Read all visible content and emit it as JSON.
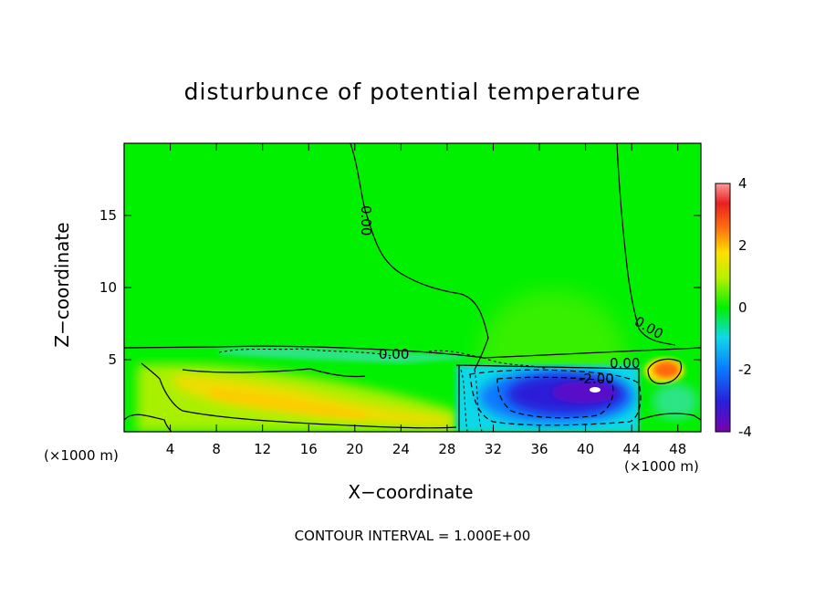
{
  "chart_data": {
    "type": "heatmap",
    "title": "disturbunce of potential temperature",
    "xlabel": "X−coordinate",
    "ylabel": "Z−coordinate",
    "x_unit": "(×1000 m)",
    "y_unit": "(×1000 m)",
    "xlim": [
      0,
      50
    ],
    "ylim": [
      0,
      20
    ],
    "x_ticks": [
      4,
      8,
      12,
      16,
      20,
      24,
      28,
      32,
      36,
      40,
      44,
      48
    ],
    "y_ticks": [
      5,
      10,
      15
    ],
    "colorbar": {
      "range": [
        -4,
        4
      ],
      "ticks": [
        4,
        2,
        0,
        -2,
        -4
      ],
      "colors": [
        "#7a00b0",
        "#2a1fd8",
        "#0a78ff",
        "#10d8e8",
        "#00f000",
        "#b8f000",
        "#ffe000",
        "#ff7010",
        "#e82020",
        "#ff9a9a"
      ]
    },
    "contour_labels": [
      "0.00",
      "0.00",
      "0.00",
      "0.00",
      "-2.00"
    ],
    "contour_interval_text": "CONTOUR INTERVAL = 1.000E+00",
    "colors": {
      "background_field": "#00f000",
      "frame": "#000000"
    }
  }
}
